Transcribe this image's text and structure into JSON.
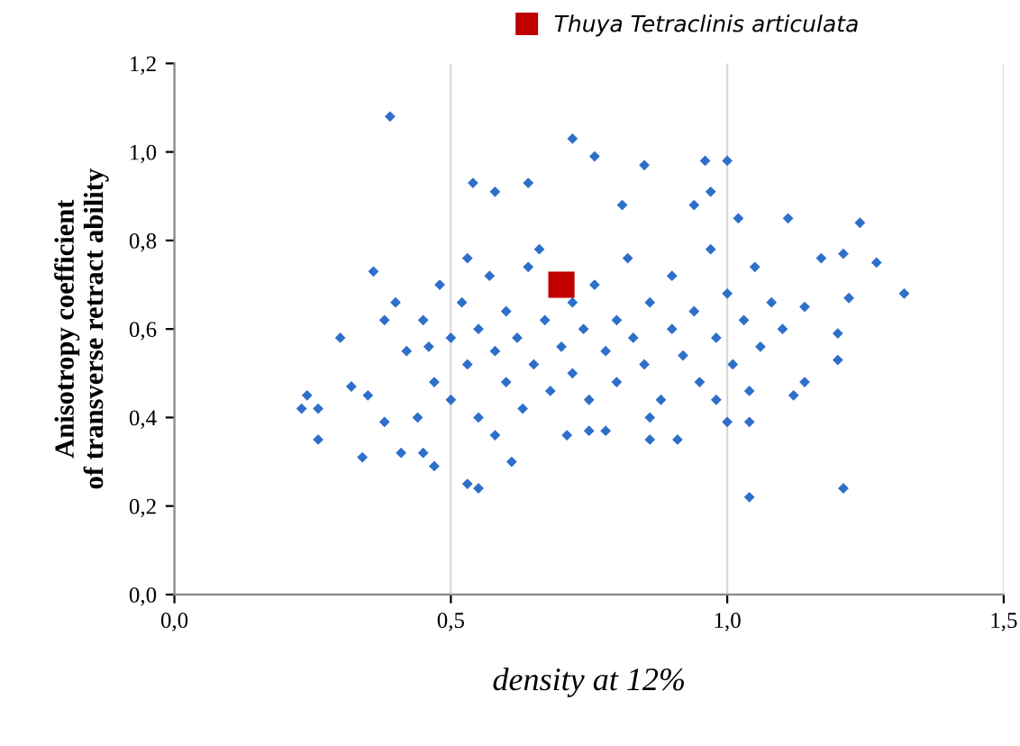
{
  "chart_data": {
    "type": "scatter",
    "xlabel": "density at 12%",
    "ylabel": "Anisotropy coefficient\nof transverse retract ability",
    "xlim": [
      0,
      1.5
    ],
    "ylim": [
      0,
      1.2
    ],
    "xticks": [
      {
        "value": 0,
        "label": "0,0"
      },
      {
        "value": 0.5,
        "label": "0,5"
      },
      {
        "value": 1.0,
        "label": "1,0"
      },
      {
        "value": 1.5,
        "label": "1,5"
      }
    ],
    "yticks": [
      {
        "value": 0,
        "label": "0,0"
      },
      {
        "value": 0.2,
        "label": "0,2"
      },
      {
        "value": 0.4,
        "label": "0,4"
      },
      {
        "value": 0.6,
        "label": "0,6"
      },
      {
        "value": 0.8,
        "label": "0,8"
      },
      {
        "value": 1.0,
        "label": "1,0"
      },
      {
        "value": 1.2,
        "label": "1,2"
      }
    ],
    "grid": "x",
    "legend": "top right",
    "series": [
      {
        "color": "#2e6fc9",
        "marker": "diamond",
        "x": [
          0.39,
          0.72,
          0.76,
          0.85,
          0.96,
          1.0,
          0.54,
          0.64,
          0.58,
          0.97,
          0.81,
          0.94,
          1.02,
          1.11,
          1.24,
          1.27,
          1.32,
          1.21,
          1.17,
          1.22,
          1.2,
          1.14,
          1.14,
          1.12,
          1.04,
          1.0,
          1.04,
          1.21,
          0.53,
          0.55,
          0.61,
          0.47,
          0.34,
          0.26,
          0.23,
          0.24,
          0.26,
          0.3,
          0.32,
          0.36,
          0.35,
          0.38,
          0.38,
          0.41,
          0.45,
          0.71,
          0.75,
          0.78,
          0.86,
          0.91,
          1.2,
          0.42,
          0.45,
          0.47,
          0.48,
          0.5,
          0.5,
          0.52,
          0.53,
          0.55,
          0.55,
          0.57,
          0.58,
          0.6,
          0.6,
          0.62,
          0.63,
          0.64,
          0.65,
          0.67,
          0.68,
          0.7,
          0.72,
          0.72,
          0.74,
          0.75,
          0.76,
          0.78,
          0.8,
          0.8,
          0.82,
          0.83,
          0.85,
          0.86,
          0.88,
          0.9,
          0.9,
          0.92,
          0.94,
          0.95,
          0.97,
          0.98,
          1.0,
          1.01,
          1.03,
          1.05,
          1.06,
          1.08,
          1.1,
          0.44,
          0.58,
          0.66,
          0.86,
          0.98,
          1.04,
          0.4,
          0.46,
          0.53
        ],
        "values": [
          1.08,
          1.03,
          0.99,
          0.97,
          0.98,
          0.98,
          0.93,
          0.93,
          0.91,
          0.91,
          0.88,
          0.88,
          0.85,
          0.85,
          0.84,
          0.75,
          0.68,
          0.77,
          0.76,
          0.67,
          0.59,
          0.65,
          0.48,
          0.45,
          0.39,
          0.39,
          0.22,
          0.24,
          0.25,
          0.24,
          0.3,
          0.29,
          0.31,
          0.35,
          0.42,
          0.45,
          0.42,
          0.58,
          0.47,
          0.73,
          0.45,
          0.62,
          0.39,
          0.32,
          0.32,
          0.36,
          0.37,
          0.37,
          0.35,
          0.35,
          0.53,
          0.55,
          0.62,
          0.48,
          0.7,
          0.58,
          0.44,
          0.66,
          0.52,
          0.6,
          0.4,
          0.72,
          0.55,
          0.48,
          0.64,
          0.58,
          0.42,
          0.74,
          0.52,
          0.62,
          0.46,
          0.56,
          0.66,
          0.5,
          0.6,
          0.44,
          0.7,
          0.55,
          0.62,
          0.48,
          0.76,
          0.58,
          0.52,
          0.66,
          0.44,
          0.6,
          0.72,
          0.54,
          0.64,
          0.48,
          0.78,
          0.58,
          0.68,
          0.52,
          0.62,
          0.74,
          0.56,
          0.66,
          0.6,
          0.4,
          0.36,
          0.78,
          0.4,
          0.44,
          0.46,
          0.66,
          0.56,
          0.76
        ]
      },
      {
        "name": "Thuya Tetraclinis articulata",
        "color": "#c00000",
        "marker": "square",
        "x": [
          0.7
        ],
        "values": [
          0.7
        ]
      }
    ]
  }
}
